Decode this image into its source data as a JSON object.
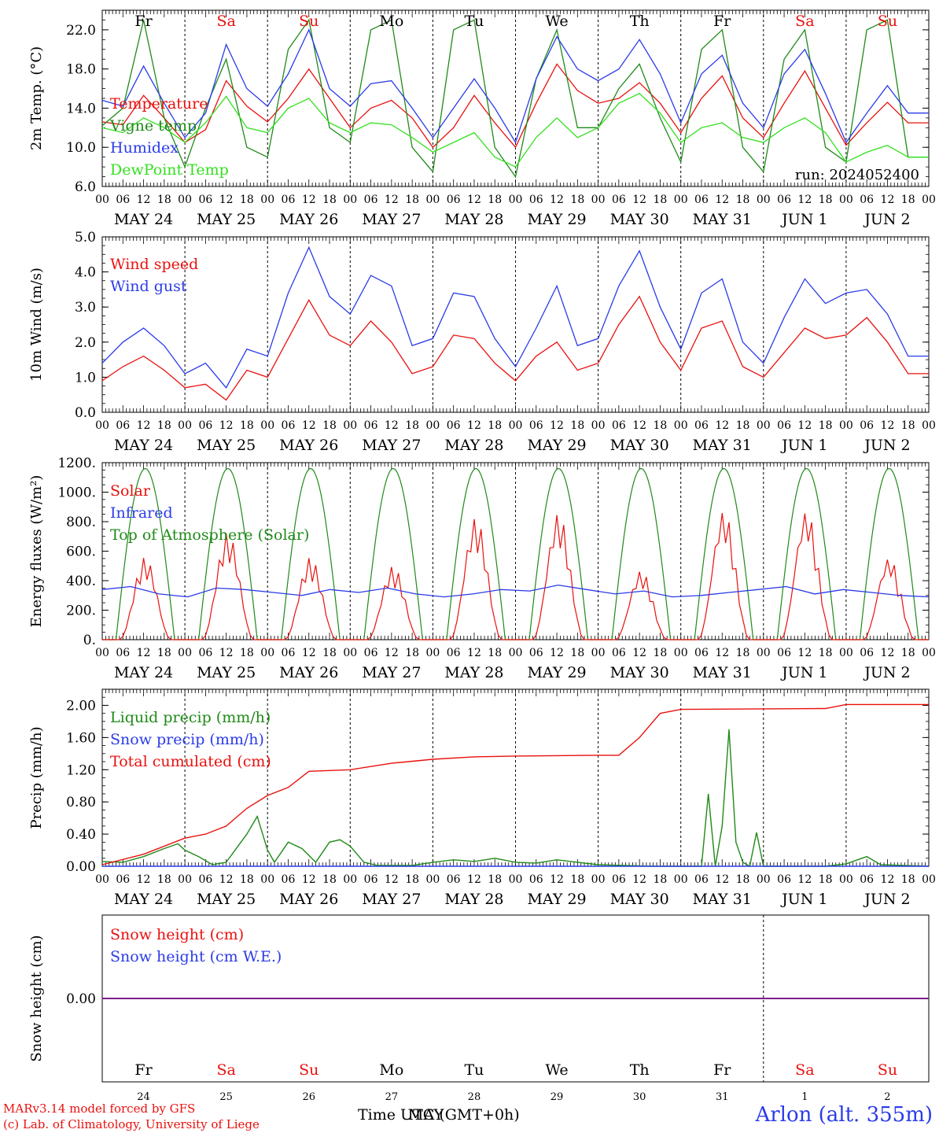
{
  "colors": {
    "red": "#e8110e",
    "green": "#1f8a18",
    "blue": "#2b3be8",
    "light_green": "#33e01e",
    "purple": "#7a1f8a",
    "black": "#000000"
  },
  "days": [
    {
      "dow": "Fr",
      "label": "MAY 24",
      "num": "24",
      "weekend": false
    },
    {
      "dow": "Sa",
      "label": "MAY 25",
      "num": "25",
      "weekend": true
    },
    {
      "dow": "Su",
      "label": "MAY 26",
      "num": "26",
      "weekend": true
    },
    {
      "dow": "Mo",
      "label": "MAY 27",
      "num": "27",
      "weekend": false
    },
    {
      "dow": "Tu",
      "label": "MAY 28",
      "num": "28",
      "weekend": false
    },
    {
      "dow": "We",
      "label": "MAY 29",
      "num": "29",
      "weekend": false
    },
    {
      "dow": "Th",
      "label": "MAY 30",
      "num": "30",
      "weekend": false
    },
    {
      "dow": "Fr",
      "label": "MAY 31",
      "num": "31",
      "weekend": false
    },
    {
      "dow": "Sa",
      "label": "JUN  1",
      "num": "1",
      "weekend": true
    },
    {
      "dow": "Su",
      "label": "JUN  2",
      "num": "2",
      "weekend": true
    }
  ],
  "hour_labels": [
    "00",
    "06",
    "12",
    "18"
  ],
  "chart_data": [
    {
      "type": "line",
      "ylabel": "2m Temp. (°C)",
      "ylim": [
        6,
        24
      ],
      "yticks": [
        "6.0",
        "10.0",
        "14.0",
        "18.0",
        "22.0"
      ],
      "ytick_values": [
        6,
        10,
        14,
        18,
        22
      ],
      "annotation": "run: 2024052400",
      "hours": [
        0,
        6,
        12,
        18,
        24,
        30,
        36,
        42,
        48,
        54,
        60,
        66,
        72,
        78,
        84,
        90,
        96,
        102,
        108,
        114,
        120,
        126,
        132,
        138,
        144,
        150,
        156,
        162,
        168,
        174,
        180,
        186,
        192,
        198,
        204,
        210,
        216,
        222,
        228,
        234
      ],
      "series": [
        {
          "name": "Temperature",
          "color": "red",
          "values": [
            12.6,
            12.3,
            15.3,
            13.0,
            10.5,
            11.8,
            16.8,
            14.2,
            12.6,
            15.0,
            18.0,
            15.0,
            12.0,
            14.0,
            14.8,
            13.0,
            10.0,
            12.0,
            15.3,
            12.5,
            10.0,
            14.5,
            18.5,
            15.8,
            14.5,
            15.0,
            16.6,
            14.5,
            11.5,
            15.0,
            17.3,
            13.0,
            11.0,
            14.5,
            17.8,
            14.0,
            10.2,
            12.5,
            14.6,
            12.5
          ]
        },
        {
          "name": "Vigne temp",
          "color": "green",
          "values": [
            12.2,
            14.0,
            23.0,
            13.0,
            8.0,
            14.0,
            19.0,
            10.0,
            9.0,
            20.0,
            23.0,
            12.0,
            10.5,
            22.0,
            23.0,
            10.0,
            7.5,
            22.0,
            23.0,
            10.0,
            7.0,
            17.0,
            22.0,
            12.0,
            12.0,
            16.0,
            18.5,
            13.0,
            8.5,
            20.0,
            22.0,
            10.0,
            7.5,
            19.0,
            22.0,
            10.0,
            8.5,
            22.0,
            23.0,
            9.0
          ]
        },
        {
          "name": "Humidex",
          "color": "blue",
          "values": [
            14.8,
            14.2,
            18.3,
            14.5,
            11.0,
            13.5,
            20.5,
            16.0,
            14.2,
            17.5,
            22.0,
            16.0,
            14.2,
            16.5,
            16.8,
            14.0,
            11.0,
            14.0,
            17.0,
            14.0,
            10.5,
            17.0,
            21.3,
            18.0,
            16.8,
            18.0,
            21.0,
            17.5,
            12.5,
            17.5,
            19.4,
            14.5,
            12.0,
            17.5,
            20.0,
            15.5,
            10.5,
            13.5,
            16.3,
            13.5
          ]
        },
        {
          "name": "DewPoint Temp",
          "color": "light_green",
          "values": [
            12.0,
            11.5,
            13.0,
            12.0,
            10.5,
            12.5,
            15.2,
            12.0,
            11.5,
            14.0,
            15.0,
            12.5,
            11.5,
            12.5,
            12.3,
            11.0,
            9.5,
            10.5,
            11.5,
            9.0,
            8.0,
            11.0,
            13.0,
            11.0,
            12.0,
            14.5,
            15.5,
            13.5,
            10.5,
            12.0,
            12.5,
            11.0,
            10.5,
            12.0,
            13.0,
            11.5,
            8.5,
            9.5,
            10.2,
            9.0
          ]
        }
      ]
    },
    {
      "type": "line",
      "ylabel": "10m Wind (m/s)",
      "ylim": [
        0,
        5
      ],
      "yticks": [
        "0.0",
        "1.0",
        "2.0",
        "3.0",
        "4.0",
        "5.0"
      ],
      "ytick_values": [
        0,
        1,
        2,
        3,
        4,
        5
      ],
      "hours": [
        0,
        6,
        12,
        18,
        24,
        30,
        36,
        42,
        48,
        54,
        60,
        66,
        72,
        78,
        84,
        90,
        96,
        102,
        108,
        114,
        120,
        126,
        132,
        138,
        144,
        150,
        156,
        162,
        168,
        174,
        180,
        186,
        192,
        198,
        204,
        210,
        216,
        222,
        228,
        234
      ],
      "series": [
        {
          "name": "Wind speed",
          "color": "red",
          "values": [
            0.9,
            1.3,
            1.6,
            1.2,
            0.7,
            0.8,
            0.35,
            1.2,
            1.0,
            2.1,
            3.2,
            2.2,
            1.9,
            2.6,
            2.0,
            1.1,
            1.3,
            2.2,
            2.1,
            1.4,
            0.9,
            1.6,
            2.0,
            1.2,
            1.4,
            2.5,
            3.3,
            2.0,
            1.2,
            2.4,
            2.6,
            1.3,
            1.0,
            1.7,
            2.4,
            2.1,
            2.2,
            2.7,
            2.0,
            1.1
          ]
        },
        {
          "name": "Wind gust",
          "color": "blue",
          "values": [
            1.4,
            2.0,
            2.4,
            1.9,
            1.1,
            1.4,
            0.7,
            1.8,
            1.6,
            3.4,
            4.7,
            3.3,
            2.8,
            3.9,
            3.6,
            1.9,
            2.1,
            3.4,
            3.3,
            2.1,
            1.3,
            2.4,
            3.6,
            1.9,
            2.1,
            3.6,
            4.6,
            3.0,
            1.8,
            3.4,
            3.8,
            2.0,
            1.4,
            2.7,
            3.8,
            3.1,
            3.4,
            3.5,
            2.8,
            1.6
          ]
        }
      ]
    },
    {
      "type": "line",
      "ylabel": "Energy fluxes (W/m²)",
      "ylim": [
        0,
        1200
      ],
      "yticks": [
        "0.",
        "200.",
        "400.",
        "600.",
        "800.",
        "1000.",
        "1200."
      ],
      "ytick_values": [
        0,
        200,
        400,
        600,
        800,
        1000,
        1200
      ],
      "toa_peak": 1160,
      "solar_peaks": [
        560,
        730,
        560,
        500,
        830,
        860,
        470,
        880,
        880,
        560
      ],
      "infrared_values": [
        340,
        360,
        310,
        290,
        350,
        340,
        320,
        300,
        340,
        320,
        350,
        310,
        290,
        310,
        340,
        330,
        370,
        340,
        310,
        330,
        290,
        300,
        320,
        340,
        360,
        310,
        340,
        320,
        300,
        290
      ],
      "series": [
        {
          "name": "Solar",
          "color": "red"
        },
        {
          "name": "Infrared",
          "color": "blue"
        },
        {
          "name": "Top of Atmosphere (Solar)",
          "color": "green"
        }
      ]
    },
    {
      "type": "line",
      "ylabel": "Precip (mm/h)",
      "ylim": [
        0,
        2.2
      ],
      "yticks": [
        "0.00",
        "0.40",
        "0.80",
        "1.20",
        "1.60",
        "2.00"
      ],
      "ytick_values": [
        0,
        0.4,
        0.8,
        1.2,
        1.6,
        2.0
      ],
      "series": [
        {
          "name": "Liquid precip (mm/h)",
          "color": "green",
          "points": [
            [
              0,
              0.06
            ],
            [
              6,
              0.05
            ],
            [
              12,
              0.12
            ],
            [
              18,
              0.22
            ],
            [
              22,
              0.28
            ],
            [
              24,
              0.2
            ],
            [
              28,
              0.12
            ],
            [
              32,
              0.02
            ],
            [
              36,
              0.05
            ],
            [
              42,
              0.4
            ],
            [
              45,
              0.62
            ],
            [
              48,
              0.2
            ],
            [
              50,
              0.05
            ],
            [
              54,
              0.3
            ],
            [
              58,
              0.22
            ],
            [
              62,
              0.05
            ],
            [
              66,
              0.3
            ],
            [
              69,
              0.33
            ],
            [
              72,
              0.25
            ],
            [
              76,
              0.05
            ],
            [
              80,
              0.01
            ],
            [
              90,
              0.01
            ],
            [
              96,
              0.05
            ],
            [
              102,
              0.08
            ],
            [
              108,
              0.06
            ],
            [
              114,
              0.1
            ],
            [
              120,
              0.05
            ],
            [
              126,
              0.04
            ],
            [
              132,
              0.08
            ],
            [
              138,
              0.05
            ],
            [
              144,
              0.02
            ],
            [
              160,
              0.0
            ],
            [
              168,
              0.0
            ],
            [
              174,
              0.0
            ],
            [
              176,
              0.9
            ],
            [
              178,
              0.0
            ],
            [
              180,
              0.5
            ],
            [
              182,
              1.7
            ],
            [
              184,
              0.3
            ],
            [
              186,
              0.05
            ],
            [
              188,
              0.0
            ],
            [
              190,
              0.42
            ],
            [
              192,
              0.0
            ],
            [
              210,
              0.0
            ],
            [
              216,
              0.03
            ],
            [
              222,
              0.12
            ],
            [
              226,
              0.02
            ],
            [
              240,
              0.0
            ]
          ]
        },
        {
          "name": "Snow precip (mm/h)",
          "color": "blue",
          "points": [
            [
              0,
              0.0
            ],
            [
              240,
              0.0
            ]
          ]
        },
        {
          "name": "Total cumulated (cm)",
          "color": "red",
          "points": [
            [
              0,
              0.02
            ],
            [
              12,
              0.15
            ],
            [
              24,
              0.35
            ],
            [
              30,
              0.4
            ],
            [
              36,
              0.5
            ],
            [
              42,
              0.72
            ],
            [
              48,
              0.88
            ],
            [
              54,
              0.98
            ],
            [
              60,
              1.18
            ],
            [
              72,
              1.2
            ],
            [
              84,
              1.28
            ],
            [
              96,
              1.33
            ],
            [
              108,
              1.36
            ],
            [
              120,
              1.37
            ],
            [
              144,
              1.38
            ],
            [
              150,
              1.38
            ],
            [
              156,
              1.6
            ],
            [
              162,
              1.9
            ],
            [
              168,
              1.95
            ],
            [
              210,
              1.96
            ],
            [
              216,
              2.01
            ],
            [
              240,
              2.01
            ]
          ]
        }
      ]
    },
    {
      "type": "line",
      "ylabel": "Snow height (cm)",
      "ylim": [
        -1,
        1
      ],
      "yticks": [
        "0.00"
      ],
      "ytick_values": [
        0
      ],
      "series": [
        {
          "name": "Snow height (cm)",
          "color": "red",
          "points": [
            [
              0,
              0
            ],
            [
              240,
              0
            ]
          ]
        },
        {
          "name": "Snow height (cm W.E.)",
          "color": "blue",
          "points": [
            [
              0,
              0
            ],
            [
              240,
              0
            ]
          ]
        }
      ]
    }
  ],
  "footer": {
    "credit_line1": "MARv3.14 model forced by GFS",
    "credit_line2": "(c) Lab. of Climatology, University of Liege",
    "axis_title": "Time UTC (GMT+0h)",
    "axis_overlay": "MAY",
    "station": "Arlon (alt. 355m)"
  }
}
